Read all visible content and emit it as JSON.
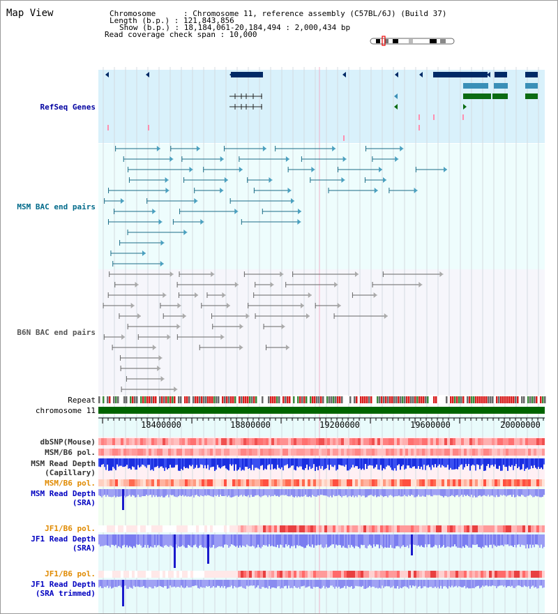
{
  "view_title": "Map View",
  "info": {
    "chromosome": "Chromosome      : Chromosome 11, reference assembly (C57BL/6J) (Build 37)",
    "length": "Length (b.p.) : 121,843,856",
    "show": "Show (b.p.) : 18,184,061-20,184,494 : 2,000,434 bp",
    "coverage": "Read coverage check span : 10,000"
  },
  "tracks": {
    "refseq": "RefSeq Genes",
    "msm_bac": "MSM BAC end pairs",
    "b6n_bac": "B6N BAC end pairs",
    "repeat": "Repeat",
    "chromosome": "chromosome 11",
    "dbsnp": "dbSNP(Mouse)",
    "msm_b6_pol_1": "MSM/B6 pol.",
    "msm_read_depth_cap_1": "MSM Read Depth",
    "msm_read_depth_cap_2": "(Capillary)",
    "msm_b6_pol_2": "MSM/B6 pol.",
    "msm_read_depth_sra_1": "MSM Read Depth",
    "msm_read_depth_sra_2": "(SRA)",
    "jf1_b6_pol_1": "JF1/B6 pol.",
    "jf1_read_depth_sra_1": "JF1 Read Depth",
    "jf1_read_depth_sra_2": "(SRA)",
    "jf1_b6_pol_2": "JF1/B6 pol.",
    "jf1_read_depth_trim_1": "JF1 Read Depth",
    "jf1_read_depth_trim_2": "(SRA trimmed)"
  },
  "axis": {
    "ticks": [
      "18400000",
      "18800000",
      "19200000",
      "19600000",
      "20000000"
    ]
  },
  "colors": {
    "refseq_label": "#0000a0",
    "msm_label": "#006a8a",
    "b6n_label": "#555555",
    "orange_label": "#e08a00",
    "blue_label": "#0000c0"
  }
}
